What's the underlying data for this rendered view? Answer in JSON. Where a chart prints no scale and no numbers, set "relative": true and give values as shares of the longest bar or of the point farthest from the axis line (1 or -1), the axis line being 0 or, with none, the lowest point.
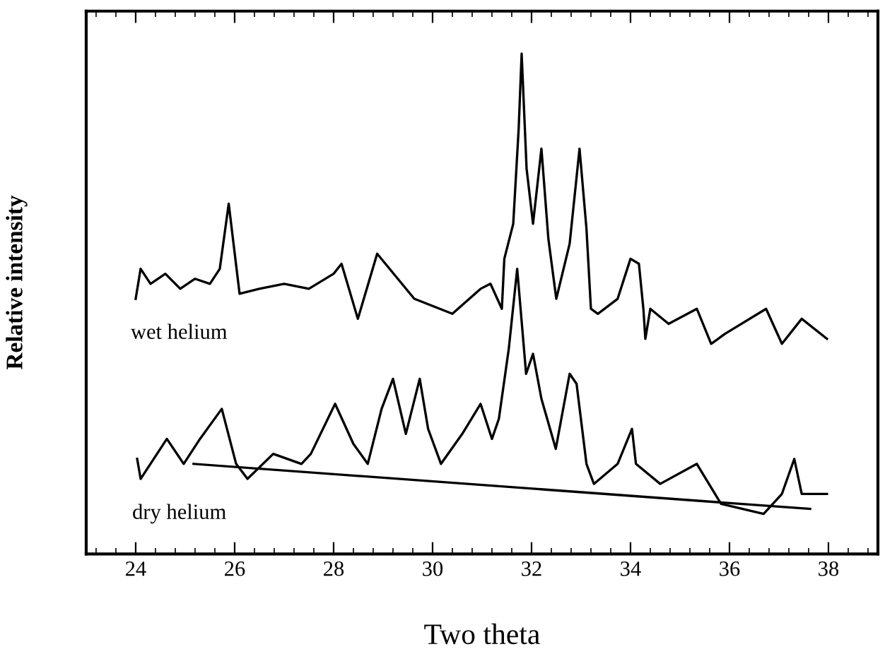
{
  "chart_data": {
    "type": "line",
    "relative": true,
    "xlabel": "Two theta",
    "ylabel": "Relative intensity",
    "xlim": [
      23,
      39
    ],
    "xticks": [
      24,
      26,
      28,
      30,
      32,
      34,
      36,
      38
    ],
    "grid": false,
    "legend": false,
    "marker": "none",
    "line_style": "solid",
    "series": [
      {
        "name": "wet helium",
        "color": "#000000",
        "x": [
          24.0,
          24.1,
          24.3,
          24.6,
          24.9,
          25.2,
          25.5,
          25.7,
          25.88,
          26.1,
          26.5,
          27.0,
          27.5,
          28.0,
          28.16,
          28.49,
          28.88,
          29.63,
          30.4,
          30.97,
          31.17,
          31.4,
          31.45,
          31.63,
          31.74,
          31.8,
          31.9,
          32.03,
          32.2,
          32.34,
          32.5,
          32.77,
          32.97,
          33.11,
          33.2,
          33.34,
          33.74,
          34.0,
          34.17,
          34.26,
          34.3,
          34.4,
          34.77,
          35.34,
          35.63,
          35.91,
          36.74,
          37.06,
          37.46,
          37.97
        ],
        "values": [
          0.51,
          0.57,
          0.54,
          0.56,
          0.53,
          0.55,
          0.54,
          0.57,
          0.7,
          0.52,
          0.53,
          0.54,
          0.53,
          0.56,
          0.58,
          0.47,
          0.6,
          0.51,
          0.48,
          0.53,
          0.54,
          0.49,
          0.59,
          0.66,
          0.85,
          1.0,
          0.77,
          0.66,
          0.81,
          0.63,
          0.51,
          0.62,
          0.81,
          0.65,
          0.49,
          0.48,
          0.51,
          0.59,
          0.58,
          0.49,
          0.43,
          0.49,
          0.46,
          0.49,
          0.42,
          0.44,
          0.49,
          0.42,
          0.47,
          0.43
        ]
      },
      {
        "name": "dry helium",
        "color": "#000000",
        "x": [
          24.03,
          24.1,
          24.63,
          24.97,
          25.3,
          25.74,
          26.03,
          26.26,
          26.78,
          27.35,
          27.54,
          28.03,
          28.4,
          28.69,
          28.97,
          29.2,
          29.46,
          29.74,
          29.91,
          30.17,
          30.6,
          30.97,
          31.2,
          31.34,
          31.54,
          31.71,
          31.89,
          32.03,
          32.2,
          32.49,
          32.77,
          32.91,
          33.11,
          33.26,
          33.74,
          34.03,
          34.11,
          34.6,
          35.34,
          35.83,
          36.69,
          37.06,
          37.31,
          37.46,
          37.97
        ],
        "values": [
          0.19,
          0.15,
          0.23,
          0.18,
          0.23,
          0.29,
          0.18,
          0.15,
          0.2,
          0.18,
          0.2,
          0.3,
          0.22,
          0.18,
          0.29,
          0.35,
          0.24,
          0.35,
          0.25,
          0.18,
          0.24,
          0.3,
          0.23,
          0.27,
          0.41,
          0.57,
          0.36,
          0.4,
          0.31,
          0.21,
          0.36,
          0.34,
          0.18,
          0.14,
          0.18,
          0.25,
          0.18,
          0.14,
          0.18,
          0.1,
          0.08,
          0.12,
          0.19,
          0.12,
          0.12
        ]
      },
      {
        "color": "#000000",
        "x": [
          25.17,
          37.63
        ],
        "values": [
          0.18,
          0.09
        ]
      }
    ]
  }
}
